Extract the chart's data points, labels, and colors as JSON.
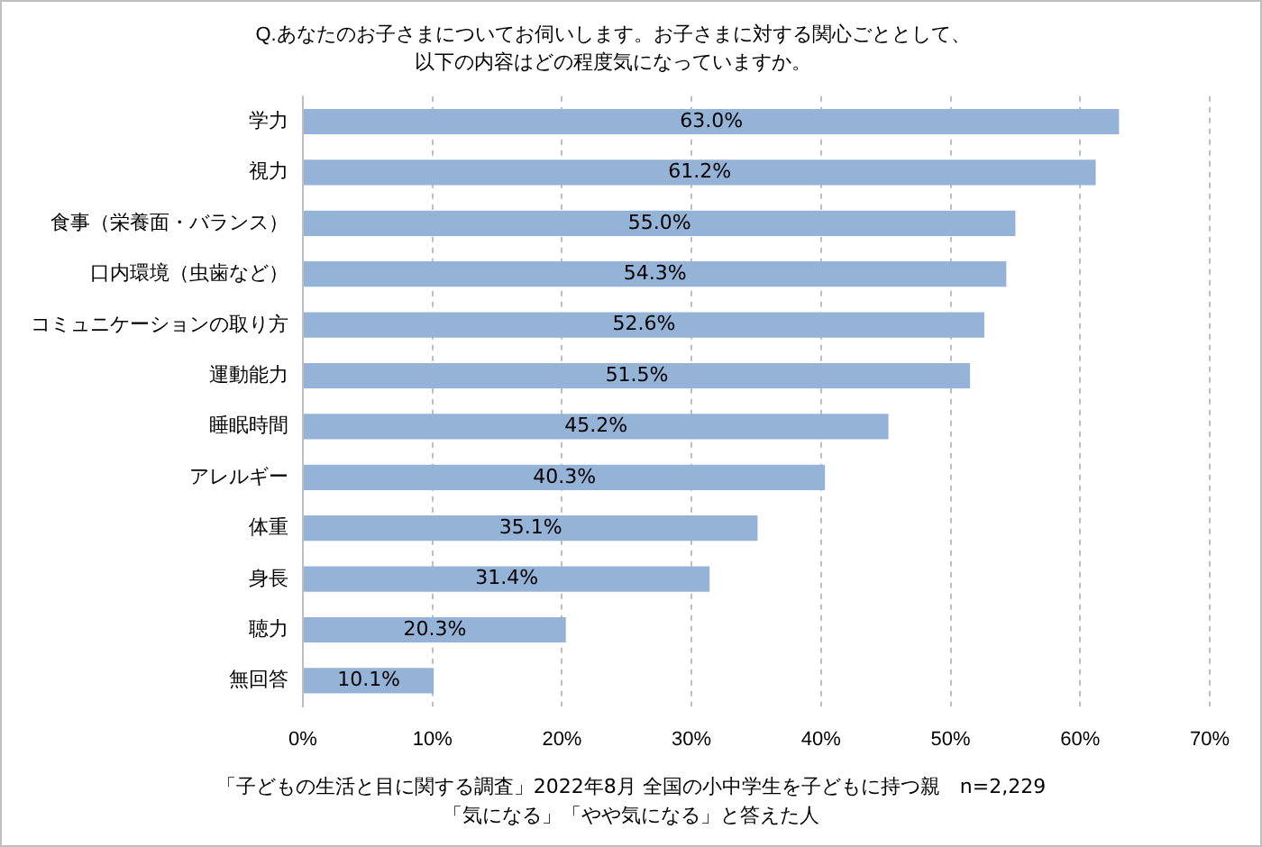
{
  "chart_data": {
    "type": "bar",
    "orientation": "horizontal",
    "title": "Q.あなたのお子さまについてお伺いします。お子さまに対する関心ごととして、",
    "subtitle": "以下の内容はどの程度気になっていますか。",
    "categories": [
      "学力",
      "視力",
      "食事（栄養面・バランス）",
      "口内環境（虫歯など）",
      "コミュニケーションの取り方",
      "運動能力",
      "睡眠時間",
      "アレルギー",
      "体重",
      "身長",
      "聴力",
      "無回答"
    ],
    "values": [
      63.0,
      61.2,
      55.0,
      54.3,
      52.6,
      51.5,
      45.2,
      40.3,
      35.1,
      31.4,
      20.3,
      10.1
    ],
    "value_labels": [
      "63.0%",
      "61.2%",
      "55.0%",
      "54.3%",
      "52.6%",
      "51.5%",
      "45.2%",
      "40.3%",
      "35.1%",
      "31.4%",
      "20.3%",
      "10.1%"
    ],
    "color": "#95b3d7",
    "xlim": [
      0,
      70
    ],
    "xticks": [
      {
        "value": 0,
        "label": "0%"
      },
      {
        "value": 10,
        "label": "10%"
      },
      {
        "value": 20,
        "label": "20%"
      },
      {
        "value": 30,
        "label": "30%"
      },
      {
        "value": 40,
        "label": "40%"
      },
      {
        "value": 50,
        "label": "50%"
      },
      {
        "value": 60,
        "label": "60%"
      },
      {
        "value": 70,
        "label": "70%"
      }
    ],
    "grid": "x",
    "legend": false,
    "annotations": [
      "「子どもの生活と目に関する調査」2022年8月 全国の小中学生を子どもに持つ親　n=2,229",
      "「気になる」「やや気になる」と答えた人"
    ]
  }
}
